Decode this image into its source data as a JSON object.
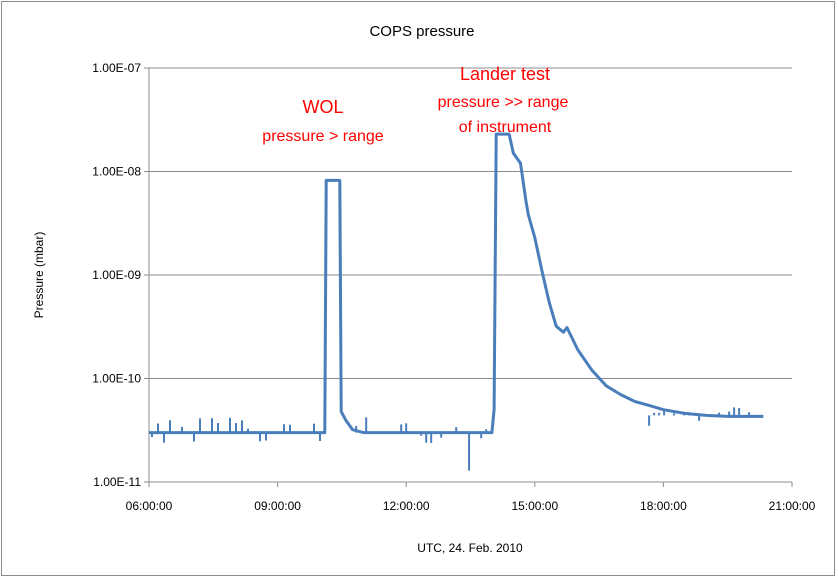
{
  "chart_data": {
    "type": "line",
    "title": "COPS pressure",
    "xlabel": "UTC, 24. Feb. 2010",
    "ylabel": "Pressure (mbar)",
    "y_scale": "log",
    "ylim": [
      1e-11,
      1e-07
    ],
    "xlim": [
      "06:00:00",
      "21:00:00"
    ],
    "x_ticks": [
      "06:00:00",
      "09:00:00",
      "12:00:00",
      "15:00:00",
      "18:00:00",
      "21:00:00"
    ],
    "y_ticks": [
      "1.00E-11",
      "1.00E-10",
      "1.00E-09",
      "1.00E-08",
      "1.00E-07"
    ],
    "grid": "horizontal",
    "legend": "none",
    "series_color": "#4a7ebb",
    "annotation_color": "#ff0000",
    "annotations": [
      {
        "lines": [
          "WOL",
          "pressure > range"
        ]
      },
      {
        "lines": [
          "Lander test",
          "pressure >> range",
          "of instrument"
        ]
      }
    ],
    "series": [
      {
        "x": [
          "06:00:00",
          "06:30:00",
          "07:00:00",
          "07:30:00",
          "08:00:00",
          "08:30:00",
          "09:00:00",
          "09:30:00",
          "10:00:00",
          "10:06:00",
          "10:08:00",
          "10:12:00",
          "10:18:00",
          "10:24:00",
          "10:27:00",
          "10:29:00",
          "10:35:00",
          "10:45:00",
          "11:00:00",
          "11:30:00",
          "12:00:00",
          "12:30:00",
          "13:00:00",
          "13:30:00",
          "13:55:00",
          "14:00:00",
          "14:03:00",
          "14:06:00",
          "14:12:00",
          "14:24:00",
          "14:30:00",
          "14:40:00",
          "14:48:00",
          "14:51:00",
          "15:00:00",
          "15:10:00",
          "15:20:00",
          "15:30:00",
          "15:40:00",
          "15:45:00",
          "16:00:00",
          "16:20:00",
          "16:40:00",
          "17:00:00",
          "17:20:00",
          "17:40:00",
          "18:00:00",
          "18:30:00",
          "19:00:00",
          "19:30:00",
          "20:00:00",
          "20:20:00"
        ],
        "y": [
          3e-11,
          3e-11,
          3e-11,
          3e-11,
          3e-11,
          3e-11,
          3e-11,
          3e-11,
          3e-11,
          3e-11,
          8.2e-09,
          8.2e-09,
          8.2e-09,
          8.2e-09,
          8.2e-09,
          4.8e-11,
          4e-11,
          3.2e-11,
          3e-11,
          3e-11,
          3e-11,
          3e-11,
          3e-11,
          3e-11,
          3e-11,
          3e-11,
          5e-11,
          2.3e-08,
          2.3e-08,
          2.3e-08,
          1.5e-08,
          1.2e-08,
          5e-09,
          3.8e-09,
          2.3e-09,
          1.1e-09,
          5.5e-10,
          3.2e-10,
          2.8e-10,
          3.1e-10,
          1.9e-10,
          1.2e-10,
          8.5e-11,
          7e-11,
          6e-11,
          5.5e-11,
          5e-11,
          4.6e-11,
          4.4e-11,
          4.3e-11,
          4.3e-11,
          4.3e-11
        ]
      }
    ]
  }
}
